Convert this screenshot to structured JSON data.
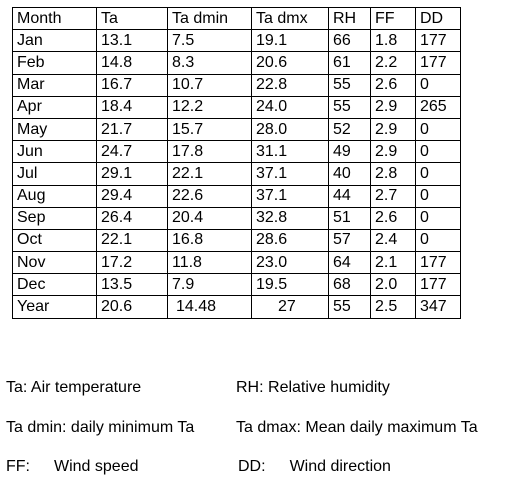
{
  "table": {
    "headers": [
      "Month",
      "Ta",
      "Ta dmin",
      "Ta dmx",
      "RH",
      "FF",
      "DD"
    ],
    "rows": [
      [
        "Jan",
        "13.1",
        "7.5",
        "19.1",
        "66",
        "1.8",
        "177"
      ],
      [
        "Feb",
        "14.8",
        "8.3",
        "20.6",
        "61",
        "2.2",
        "177"
      ],
      [
        "Mar",
        "16.7",
        "10.7",
        "22.8",
        "55",
        "2.6",
        "0"
      ],
      [
        "Apr",
        "18.4",
        "12.2",
        "24.0",
        "55",
        "2.9",
        "265"
      ],
      [
        "May",
        "21.7",
        "15.7",
        "28.0",
        "52",
        "2.9",
        "0"
      ],
      [
        "Jun",
        "24.7",
        "17.8",
        "31.1",
        "49",
        "2.9",
        "0"
      ],
      [
        "Jul",
        "29.1",
        "22.1",
        "37.1",
        "40",
        "2.8",
        "0"
      ],
      [
        "Aug",
        "29.4",
        "22.6",
        "37.1",
        "44",
        "2.7",
        "0"
      ],
      [
        "Sep",
        "26.4",
        "20.4",
        "32.8",
        "51",
        "2.6",
        "0"
      ],
      [
        "Oct",
        "22.1",
        "16.8",
        "28.6",
        "57",
        "2.4",
        "0"
      ],
      [
        "Nov",
        "17.2",
        "11.8",
        "23.0",
        "64",
        "2.1",
        "177"
      ],
      [
        "Dec",
        "13.5",
        "7.9",
        "19.5",
        "68",
        "2.0",
        "177"
      ],
      [
        "Year",
        "20.6",
        "14.48",
        "27",
        "55",
        "2.5",
        "347"
      ]
    ]
  },
  "legend": {
    "ta": {
      "abbr": "Ta:",
      "text": "Air temperature"
    },
    "rh": {
      "abbr": "RH:",
      "text": "Relative humidity"
    },
    "tadmin": {
      "abbr": "Ta dmin:",
      "text": "daily minimum Ta"
    },
    "tadmax": {
      "abbr": "Ta dmax:",
      "text": "Mean daily maximum Ta"
    },
    "ff": {
      "abbr": "FF:",
      "text": "Wind speed"
    },
    "dd": {
      "abbr": "DD:",
      "text": "Wind direction"
    }
  }
}
